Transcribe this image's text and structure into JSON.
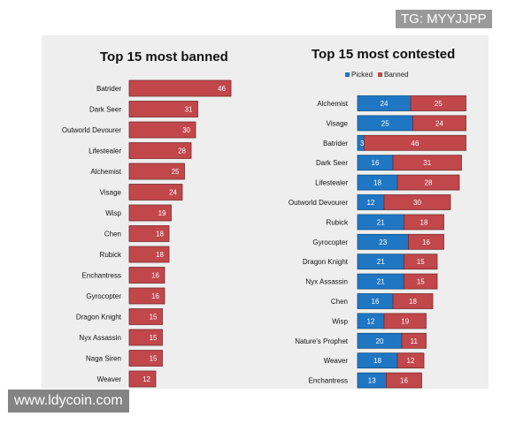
{
  "watermarks": {
    "top_right": "TG: MYYJJPP",
    "bottom_left": "www.ldycoin.com"
  },
  "colors": {
    "picked": "#1f77c4",
    "banned": "#c1474a",
    "panel": "#eeeeee"
  },
  "chart_data": [
    {
      "type": "bar",
      "orientation": "horizontal",
      "title": "Top 15 most banned",
      "categories": [
        "Batrider",
        "Dark Seer",
        "Outworld Devourer",
        "Lifestealer",
        "Alchemist",
        "Visage",
        "Wisp",
        "Chen",
        "Rubick",
        "Enchantress",
        "Gyrocopter",
        "Dragon Knight",
        "Nyx Assassin",
        "Naga Siren",
        "Weaver"
      ],
      "series": [
        {
          "name": "Banned",
          "values": [
            46,
            31,
            30,
            28,
            25,
            24,
            19,
            18,
            18,
            16,
            16,
            15,
            15,
            15,
            12
          ]
        }
      ]
    },
    {
      "type": "bar",
      "orientation": "horizontal",
      "stacked": true,
      "title": "Top 15 most contested",
      "legend": [
        "Picked",
        "Banned"
      ],
      "categories": [
        "Alchemist",
        "Visage",
        "Batrider",
        "Dark Seer",
        "Lifestealer",
        "Outworld Devourer",
        "Rubick",
        "Gyrocopter",
        "Dragon Knight",
        "Nyx Assassin",
        "Chen",
        "Wisp",
        "Nature's Prophet",
        "Weaver",
        "Enchantress"
      ],
      "series": [
        {
          "name": "Picked",
          "values": [
            24,
            25,
            3,
            16,
            18,
            12,
            21,
            23,
            21,
            21,
            16,
            12,
            20,
            18,
            13
          ]
        },
        {
          "name": "Banned",
          "values": [
            25,
            24,
            46,
            31,
            28,
            30,
            18,
            16,
            15,
            15,
            18,
            19,
            11,
            12,
            16
          ]
        }
      ]
    }
  ]
}
